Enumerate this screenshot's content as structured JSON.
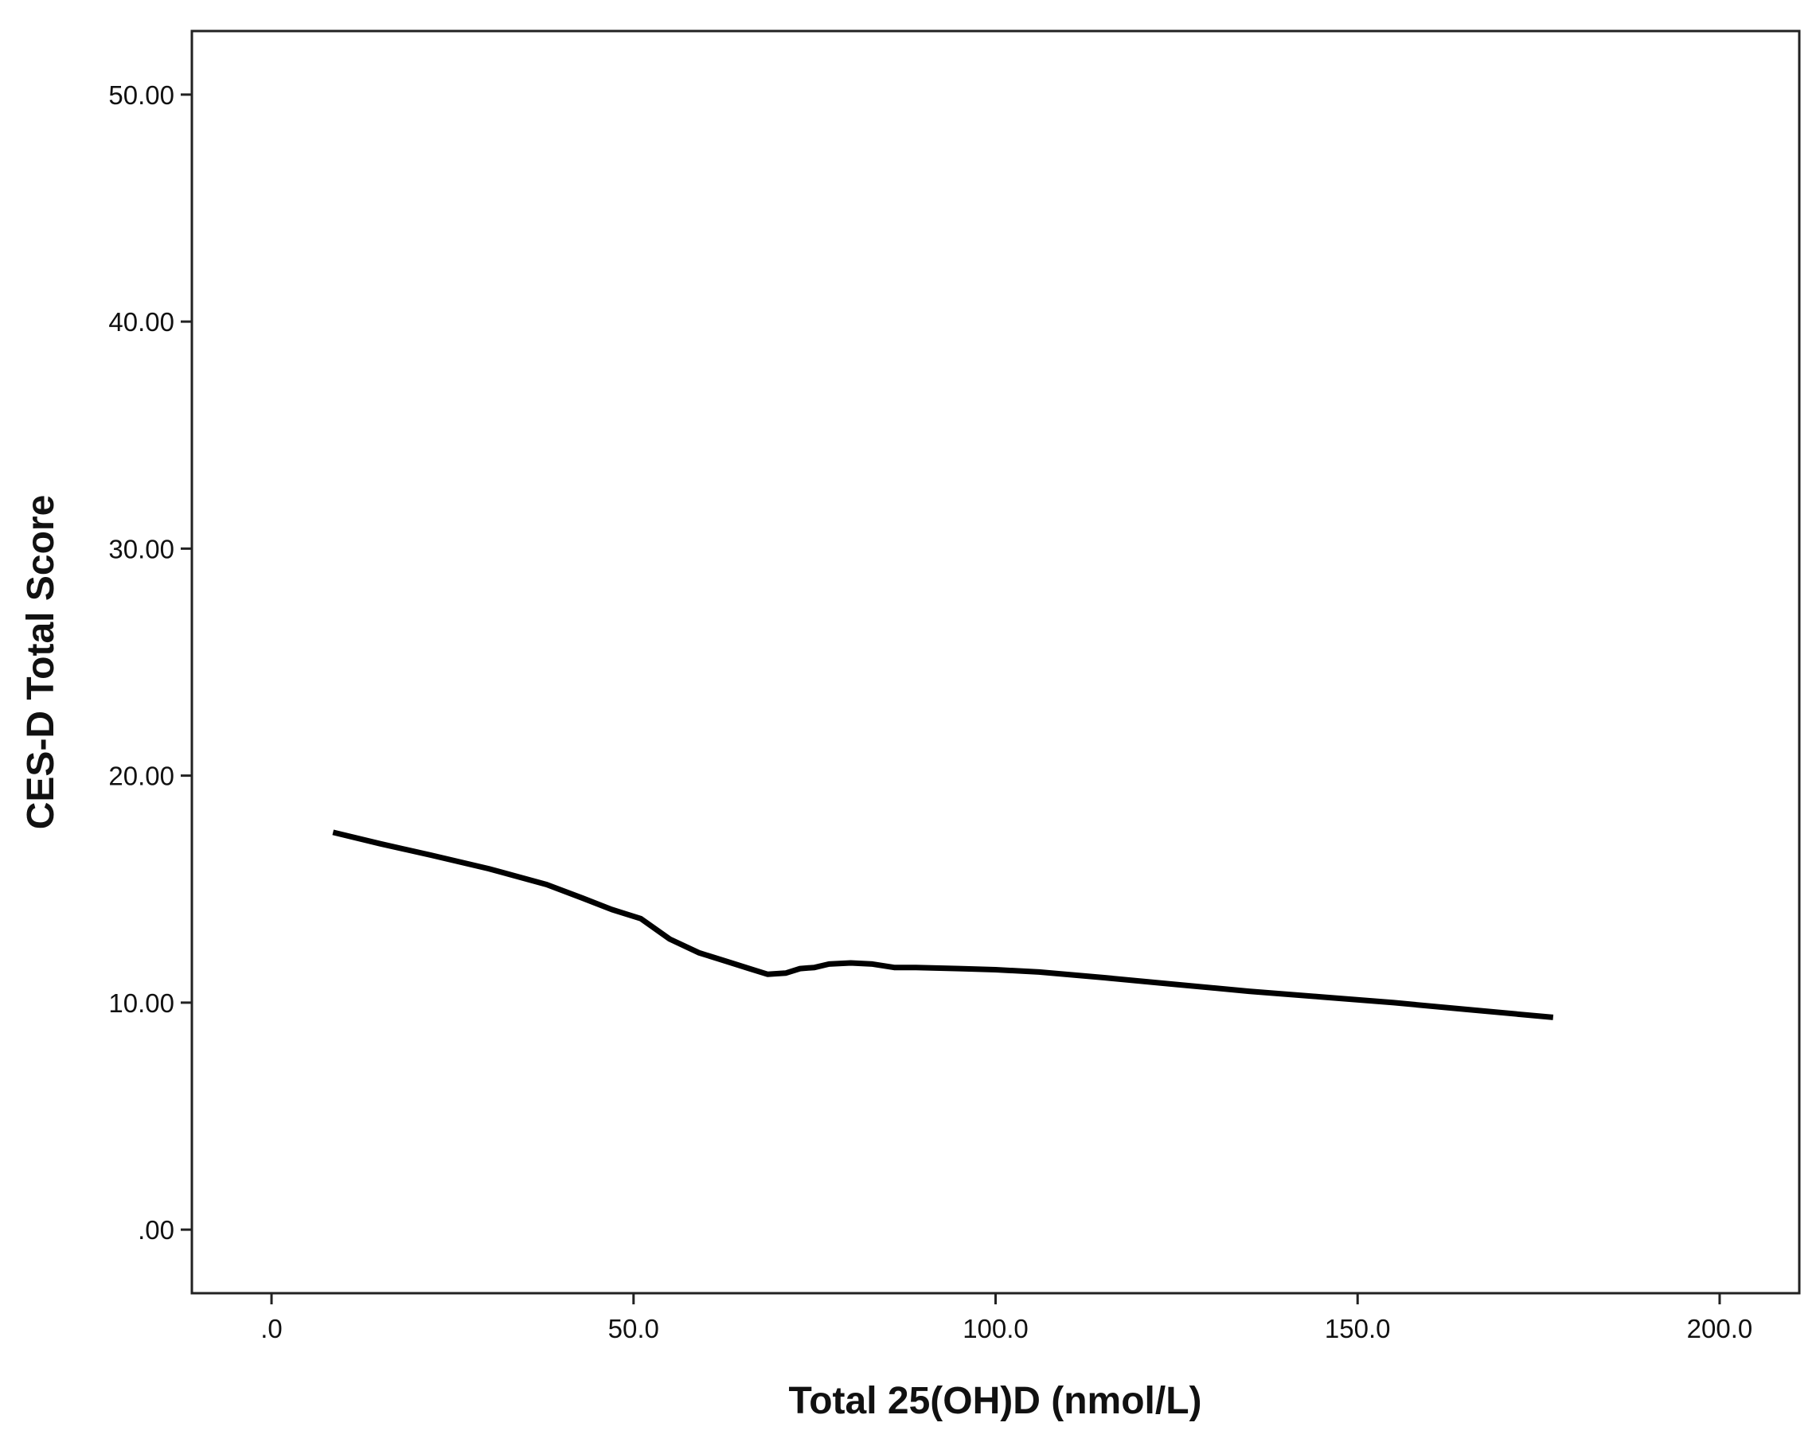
{
  "chart_data": {
    "type": "line",
    "title": "",
    "xlabel": "Total 25(OH)D (nmol/L)",
    "ylabel": "CES-D Total Score",
    "xlim": [
      -11,
      211
    ],
    "ylim": [
      -2.8,
      52.8
    ],
    "grid": false,
    "x_ticks": [
      {
        "value": 0,
        "label": ".0"
      },
      {
        "value": 50,
        "label": "50.0"
      },
      {
        "value": 100,
        "label": "100.0"
      },
      {
        "value": 150,
        "label": "150.0"
      },
      {
        "value": 200,
        "label": "200.0"
      }
    ],
    "y_ticks": [
      {
        "value": 0,
        "label": ".00"
      },
      {
        "value": 10,
        "label": "10.00"
      },
      {
        "value": 20,
        "label": "20.00"
      },
      {
        "value": 30,
        "label": "30.00"
      },
      {
        "value": 40,
        "label": "40.00"
      },
      {
        "value": 50,
        "label": "50.00"
      }
    ],
    "series": [
      {
        "color": "#000000",
        "points": [
          {
            "x": 8.5,
            "y": 17.5
          },
          {
            "x": 15,
            "y": 17.0
          },
          {
            "x": 22,
            "y": 16.5
          },
          {
            "x": 30,
            "y": 15.9
          },
          {
            "x": 38,
            "y": 15.2
          },
          {
            "x": 43,
            "y": 14.6
          },
          {
            "x": 47,
            "y": 14.1
          },
          {
            "x": 51,
            "y": 13.7
          },
          {
            "x": 55,
            "y": 12.8
          },
          {
            "x": 59,
            "y": 12.2
          },
          {
            "x": 63,
            "y": 11.8
          },
          {
            "x": 66,
            "y": 11.5
          },
          {
            "x": 68.5,
            "y": 11.25
          },
          {
            "x": 71,
            "y": 11.3
          },
          {
            "x": 73,
            "y": 11.5
          },
          {
            "x": 75,
            "y": 11.55
          },
          {
            "x": 77,
            "y": 11.7
          },
          {
            "x": 80,
            "y": 11.75
          },
          {
            "x": 83,
            "y": 11.7
          },
          {
            "x": 86,
            "y": 11.55
          },
          {
            "x": 89,
            "y": 11.55
          },
          {
            "x": 95,
            "y": 11.5
          },
          {
            "x": 100,
            "y": 11.45
          },
          {
            "x": 106,
            "y": 11.35
          },
          {
            "x": 115,
            "y": 11.1
          },
          {
            "x": 125,
            "y": 10.8
          },
          {
            "x": 135,
            "y": 10.5
          },
          {
            "x": 145,
            "y": 10.25
          },
          {
            "x": 155,
            "y": 10.0
          },
          {
            "x": 165,
            "y": 9.7
          },
          {
            "x": 177,
            "y": 9.35
          }
        ]
      }
    ]
  }
}
